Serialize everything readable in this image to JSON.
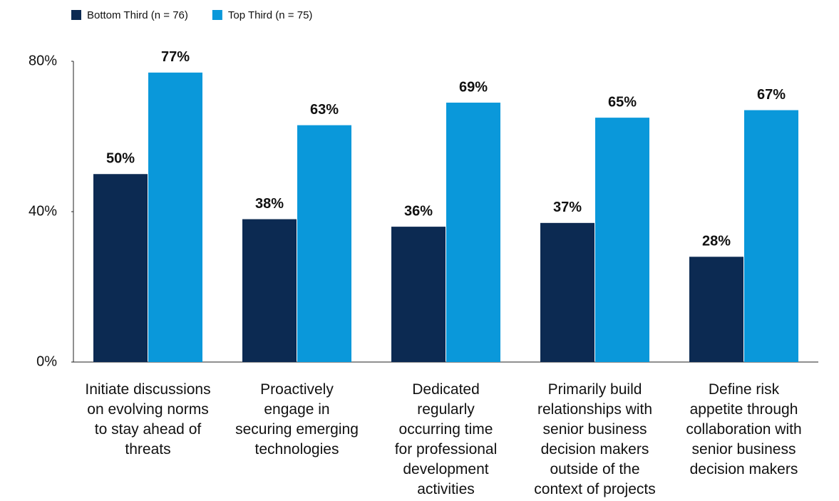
{
  "chart_data": {
    "type": "bar",
    "categories": [
      "Initiate discussions\non evolving norms\nto stay ahead of\nthreats",
      "Proactively\nengage in\nsecuring emerging\ntechnologies",
      "Dedicated\nregularly\noccurring time\nfor professional\ndevelopment\nactivities",
      "Primarily build\nrelationships with\nsenior business\ndecision makers\noutside of the\ncontext of projects",
      "Define risk\nappetite through\ncollaboration with\nsenior business\ndecision makers"
    ],
    "series": [
      {
        "name": "Bottom Third (n = 76)",
        "color": "#0c2a52",
        "values": [
          50,
          38,
          36,
          37,
          28
        ],
        "value_labels": [
          "50%",
          "38%",
          "36%",
          "37%",
          "28%"
        ]
      },
      {
        "name": "Top Third (n = 75)",
        "color": "#0a98da",
        "values": [
          77,
          63,
          69,
          65,
          67
        ],
        "value_labels": [
          "77%",
          "63%",
          "69%",
          "65%",
          "67%"
        ]
      }
    ],
    "ylim": [
      0,
      80
    ],
    "yticks": [
      {
        "value": 0,
        "label": "0%"
      },
      {
        "value": 40,
        "label": "40%"
      },
      {
        "value": 80,
        "label": "80%"
      }
    ],
    "legend": "top-left"
  }
}
